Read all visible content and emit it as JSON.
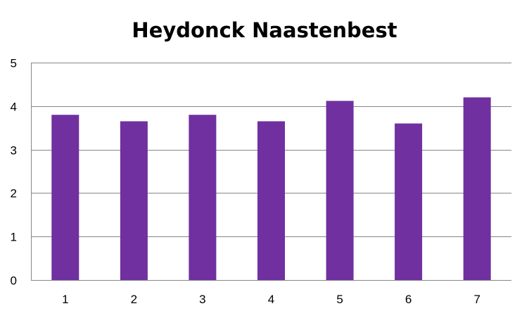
{
  "chart_data": {
    "type": "bar",
    "title": "Heydonck Naastenbest",
    "xlabel": "",
    "ylabel": "",
    "categories": [
      "1",
      "2",
      "3",
      "4",
      "5",
      "6",
      "7"
    ],
    "values": [
      3.8,
      3.65,
      3.8,
      3.65,
      4.12,
      3.6,
      4.2
    ],
    "ylim": [
      0,
      5
    ],
    "yticks": [
      "0",
      "1",
      "2",
      "3",
      "4",
      "5"
    ],
    "grid": true,
    "legend": "none",
    "colors": {
      "bar": "#7030A0",
      "grid": "#868686",
      "axis": "#868686"
    }
  }
}
